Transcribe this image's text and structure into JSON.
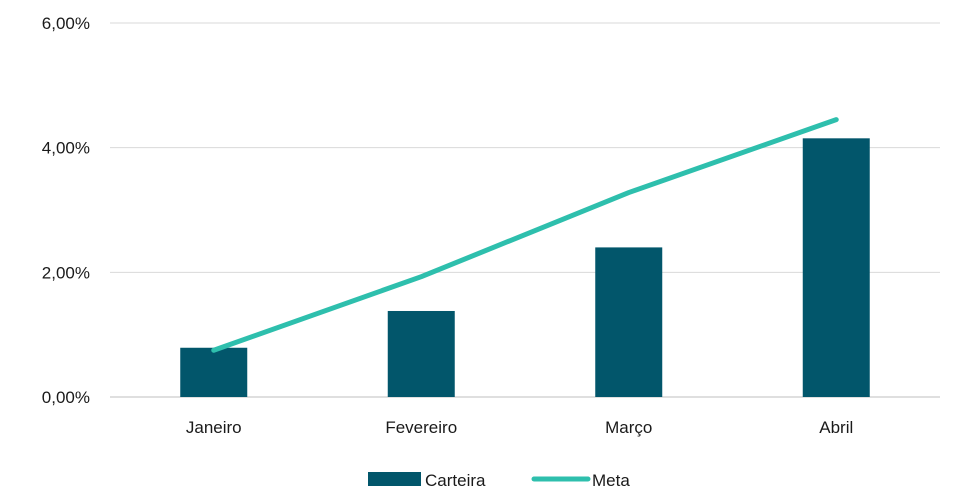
{
  "chart_data": {
    "type": "bar",
    "categories": [
      "Janeiro",
      "Fevereiro",
      "Março",
      "Abril"
    ],
    "series": [
      {
        "name": "Carteira",
        "kind": "bar",
        "values": [
          0.0079,
          0.0138,
          0.024,
          0.0415
        ],
        "color": "#02566b"
      },
      {
        "name": "Meta",
        "kind": "line",
        "values": [
          0.0075,
          0.0193,
          0.0328,
          0.0445
        ],
        "color": "#2ebfad"
      }
    ],
    "yticks": [
      "0,00%",
      "2,00%",
      "4,00%",
      "6,00%"
    ],
    "ylim": [
      0,
      0.06
    ],
    "grid": true,
    "legend": "bottom",
    "title": "",
    "xlabel": "",
    "ylabel": ""
  }
}
